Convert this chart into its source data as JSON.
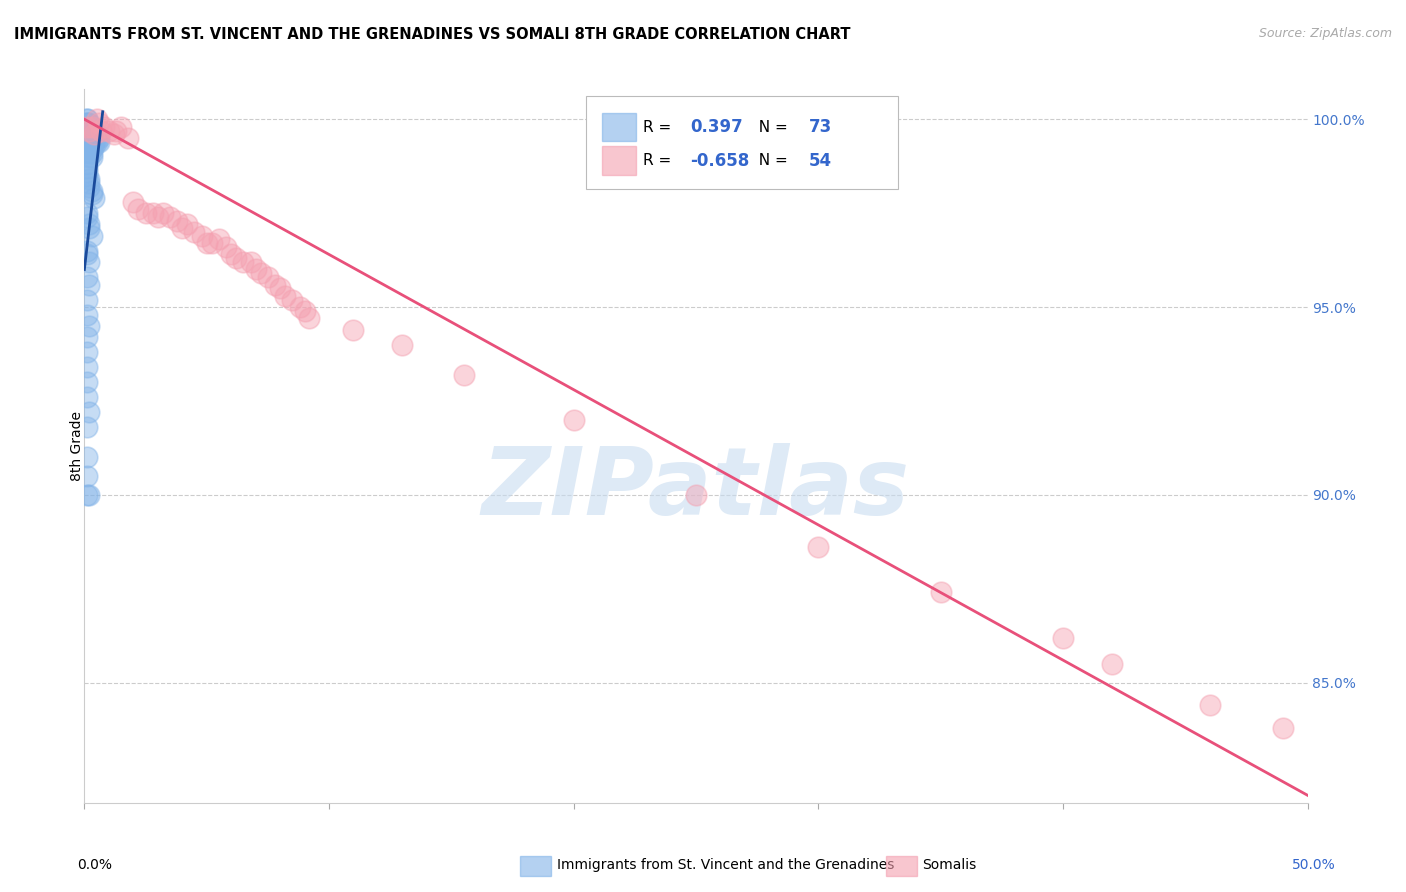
{
  "title": "IMMIGRANTS FROM ST. VINCENT AND THE GRENADINES VS SOMALI 8TH GRADE CORRELATION CHART",
  "source": "Source: ZipAtlas.com",
  "ylabel": "8th Grade",
  "ylabel_right_labels": [
    "100.0%",
    "95.0%",
    "90.0%",
    "85.0%"
  ],
  "ylabel_right_values": [
    1.0,
    0.95,
    0.9,
    0.85
  ],
  "xlim": [
    0.0,
    0.5
  ],
  "ylim": [
    0.818,
    1.008
  ],
  "blue_R": 0.397,
  "blue_N": 73,
  "pink_R": -0.658,
  "pink_N": 54,
  "blue_color": "#82B3E8",
  "pink_color": "#F4A0B0",
  "blue_line_color": "#1A4A9B",
  "pink_line_color": "#E8507A",
  "watermark_text": "ZIPatlas",
  "legend_label_blue": "Immigrants from St. Vincent and the Grenadines",
  "legend_label_pink": "Somalis",
  "blue_x": [
    0.001,
    0.001,
    0.001,
    0.001,
    0.001,
    0.001,
    0.001,
    0.001,
    0.001,
    0.001,
    0.002,
    0.002,
    0.002,
    0.002,
    0.002,
    0.002,
    0.002,
    0.002,
    0.002,
    0.002,
    0.003,
    0.003,
    0.003,
    0.003,
    0.003,
    0.003,
    0.003,
    0.003,
    0.003,
    0.004,
    0.004,
    0.004,
    0.004,
    0.004,
    0.005,
    0.005,
    0.005,
    0.006,
    0.006,
    0.001,
    0.001,
    0.001,
    0.001,
    0.002,
    0.002,
    0.002,
    0.003,
    0.003,
    0.004,
    0.001,
    0.001,
    0.002,
    0.002,
    0.003,
    0.001,
    0.001,
    0.002,
    0.001,
    0.002,
    0.001,
    0.001,
    0.002,
    0.001,
    0.001,
    0.001,
    0.001,
    0.001,
    0.002,
    0.001,
    0.001,
    0.001,
    0.001,
    0.002
  ],
  "blue_y": [
    1.0,
    1.0,
    0.999,
    0.999,
    0.998,
    0.998,
    0.997,
    0.997,
    0.996,
    0.996,
    0.999,
    0.998,
    0.997,
    0.996,
    0.995,
    0.994,
    0.993,
    0.992,
    0.991,
    0.99,
    0.998,
    0.997,
    0.996,
    0.995,
    0.994,
    0.993,
    0.992,
    0.991,
    0.99,
    0.997,
    0.996,
    0.995,
    0.994,
    0.993,
    0.996,
    0.995,
    0.994,
    0.995,
    0.994,
    0.988,
    0.987,
    0.986,
    0.985,
    0.984,
    0.983,
    0.982,
    0.981,
    0.98,
    0.979,
    0.975,
    0.974,
    0.972,
    0.971,
    0.969,
    0.965,
    0.964,
    0.962,
    0.958,
    0.956,
    0.952,
    0.948,
    0.945,
    0.942,
    0.938,
    0.934,
    0.93,
    0.926,
    0.922,
    0.918,
    0.91,
    0.905,
    0.9,
    0.9
  ],
  "pink_x": [
    0.001,
    0.002,
    0.003,
    0.004,
    0.005,
    0.006,
    0.007,
    0.008,
    0.01,
    0.012,
    0.013,
    0.015,
    0.018,
    0.02,
    0.022,
    0.025,
    0.028,
    0.03,
    0.032,
    0.035,
    0.038,
    0.04,
    0.042,
    0.045,
    0.048,
    0.05,
    0.052,
    0.055,
    0.058,
    0.06,
    0.062,
    0.065,
    0.068,
    0.07,
    0.072,
    0.075,
    0.078,
    0.08,
    0.082,
    0.085,
    0.088,
    0.09,
    0.092,
    0.11,
    0.13,
    0.155,
    0.2,
    0.25,
    0.3,
    0.35,
    0.4,
    0.42,
    0.46,
    0.49
  ],
  "pink_y": [
    0.998,
    0.997,
    0.998,
    0.996,
    1.0,
    0.999,
    0.997,
    0.998,
    0.997,
    0.996,
    0.997,
    0.998,
    0.995,
    0.978,
    0.976,
    0.975,
    0.975,
    0.974,
    0.975,
    0.974,
    0.973,
    0.971,
    0.972,
    0.97,
    0.969,
    0.967,
    0.967,
    0.968,
    0.966,
    0.964,
    0.963,
    0.962,
    0.962,
    0.96,
    0.959,
    0.958,
    0.956,
    0.955,
    0.953,
    0.952,
    0.95,
    0.949,
    0.947,
    0.944,
    0.94,
    0.932,
    0.92,
    0.9,
    0.886,
    0.874,
    0.862,
    0.855,
    0.844,
    0.838
  ],
  "blue_trend_x": [
    0.0,
    0.0075
  ],
  "blue_trend_y": [
    0.96,
    1.002
  ],
  "pink_trend_x": [
    0.0,
    0.5
  ],
  "pink_trend_y": [
    1.0,
    0.82
  ]
}
